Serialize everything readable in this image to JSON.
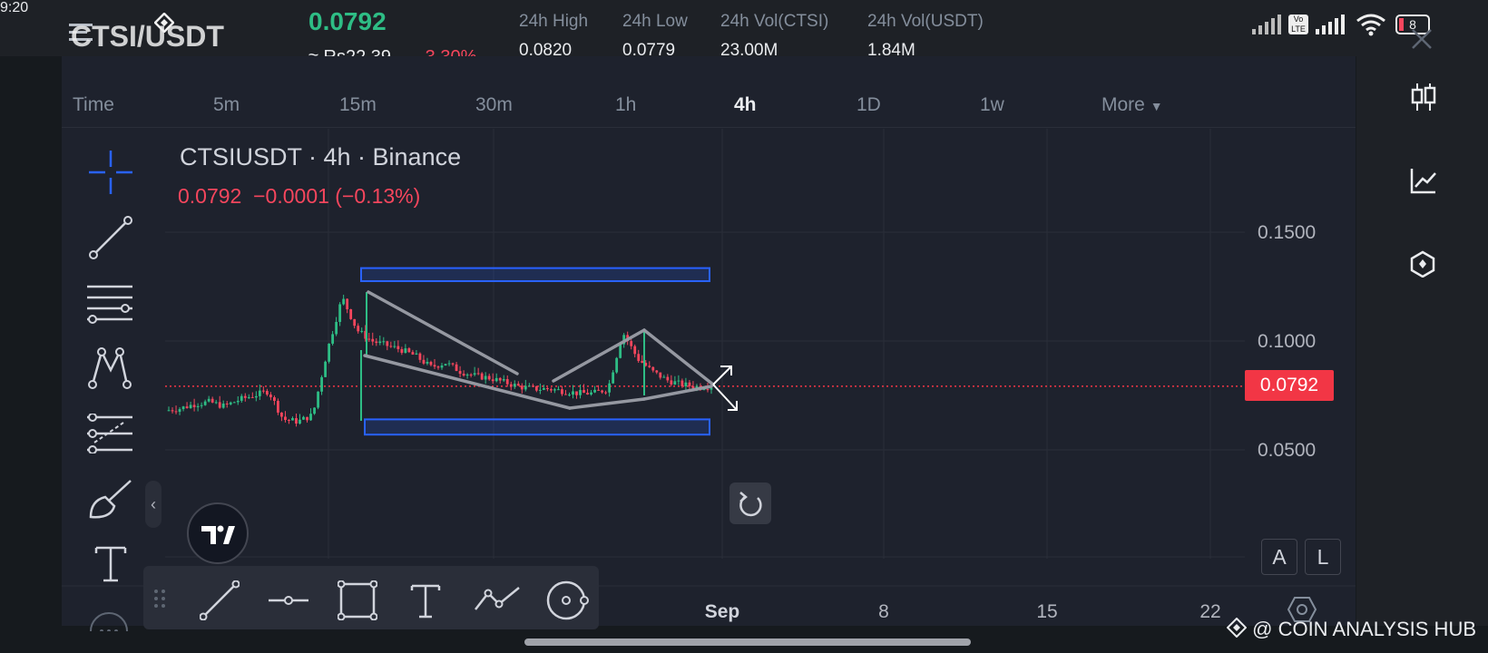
{
  "status_bar": {
    "time": "9:20",
    "battery": "8"
  },
  "header": {
    "pair": "CTSI/USDT",
    "last_price": "0.0792",
    "approx_local": "≈ Rs22.39",
    "change_pct": "-3.30%",
    "stats": [
      {
        "label": "24h High",
        "value": "0.0820"
      },
      {
        "label": "24h Low",
        "value": "0.0779"
      },
      {
        "label": "24h Vol(CTSI)",
        "value": "23.00M"
      },
      {
        "label": "24h Vol(USDT)",
        "value": "1.84M"
      }
    ]
  },
  "tabs": [
    {
      "label": "Time",
      "active": false
    },
    {
      "label": "5m",
      "active": false
    },
    {
      "label": "15m",
      "active": false
    },
    {
      "label": "30m",
      "active": false
    },
    {
      "label": "1h",
      "active": false
    },
    {
      "label": "4h",
      "active": true
    },
    {
      "label": "1D",
      "active": false
    },
    {
      "label": "1w",
      "active": false
    },
    {
      "label": "More",
      "active": false
    }
  ],
  "chart_legend": {
    "title": "CTSIUSDT · 4h · Binance",
    "values": "0.0792  −0.0001 (−0.13%)"
  },
  "price_scale": {
    "ticks": [
      "0.1500",
      "0.1000",
      "0.0500"
    ],
    "current_price": "0.0792"
  },
  "time_scale": {
    "ticks": [
      "Sep",
      "8",
      "15",
      "22"
    ]
  },
  "right_rail": {
    "icons": [
      "candlestick-icon",
      "line-chart-icon",
      "hexagon-icon"
    ]
  },
  "scale_buttons": {
    "auto": "A",
    "log": "L"
  },
  "watermark": "@ COIN ANALYSIS HUB",
  "colors": {
    "up": "#2ebd85",
    "down": "#f6465d",
    "zone": "#2962ff",
    "pattern_line": "#9598a1",
    "background": "#1e222d"
  },
  "chart_data": {
    "type": "candlestick",
    "symbol": "CTSIUSDT",
    "interval": "4h",
    "exchange": "Binance",
    "last": 0.0792,
    "y_ticks": [
      0.15,
      0.1,
      0.05
    ],
    "x_ticks": [
      "Sep",
      "8",
      "15",
      "22"
    ],
    "series_close_approx": [
      0.068,
      0.069,
      0.071,
      0.072,
      0.07,
      0.073,
      0.075,
      0.077,
      0.064,
      0.063,
      0.066,
      0.096,
      0.12,
      0.105,
      0.1,
      0.098,
      0.096,
      0.093,
      0.088,
      0.09,
      0.086,
      0.084,
      0.083,
      0.081,
      0.079,
      0.078,
      0.078,
      0.077,
      0.076,
      0.076,
      0.078,
      0.104,
      0.092,
      0.086,
      0.082,
      0.08,
      0.079,
      0.0792
    ],
    "zones": [
      {
        "top": 0.1335,
        "bottom": 0.1275
      },
      {
        "top": 0.064,
        "bottom": 0.057
      }
    ]
  }
}
